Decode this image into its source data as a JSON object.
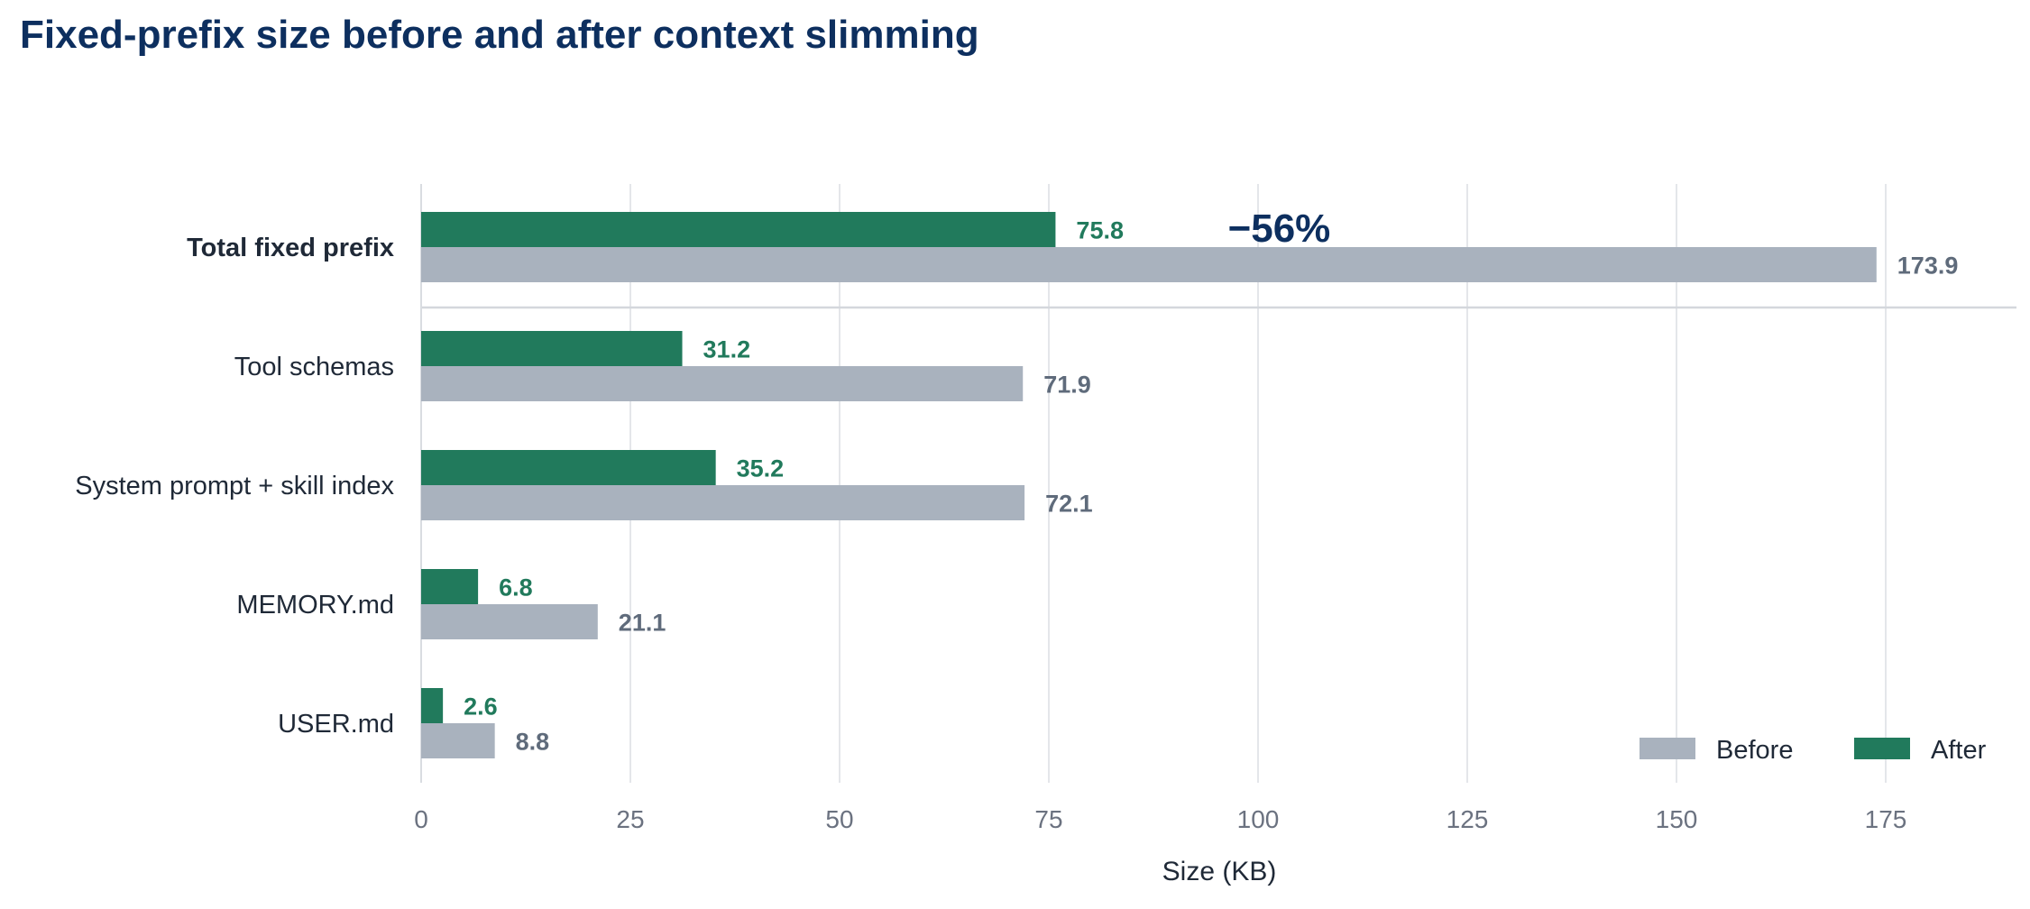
{
  "colors": {
    "before": "#a9b2be",
    "after": "#217a5c",
    "title": "#0d2f5f",
    "before_label": "#5f6b7b",
    "after_label": "#217a5c",
    "grid": "#e4e6ea"
  },
  "chart_data": {
    "type": "bar",
    "orientation": "horizontal",
    "title": "Fixed-prefix size before and after context slimming",
    "xlabel": "Size (KB)",
    "ylabel": "",
    "xlim": [
      0,
      190
    ],
    "xticks": [
      0,
      25,
      50,
      75,
      100,
      125,
      150,
      175
    ],
    "grid": true,
    "legend_position": "bottom-right",
    "categories": [
      "Total fixed prefix",
      "Tool schemas",
      "System prompt + skill index",
      "MEMORY.md",
      "USER.md"
    ],
    "series": [
      {
        "name": "Before",
        "values": [
          173.9,
          71.9,
          72.1,
          21.1,
          8.8
        ]
      },
      {
        "name": "After",
        "values": [
          75.8,
          31.2,
          35.2,
          6.8,
          2.6
        ]
      }
    ],
    "value_labels": {
      "before": [
        "173.9",
        "71.9",
        "72.1",
        "21.1",
        "8.8"
      ],
      "after": [
        "75.8",
        "31.2",
        "35.2",
        "6.8",
        "2.6"
      ]
    },
    "annotation": {
      "text": "−56%",
      "category": "Total fixed prefix",
      "x": 102
    }
  }
}
